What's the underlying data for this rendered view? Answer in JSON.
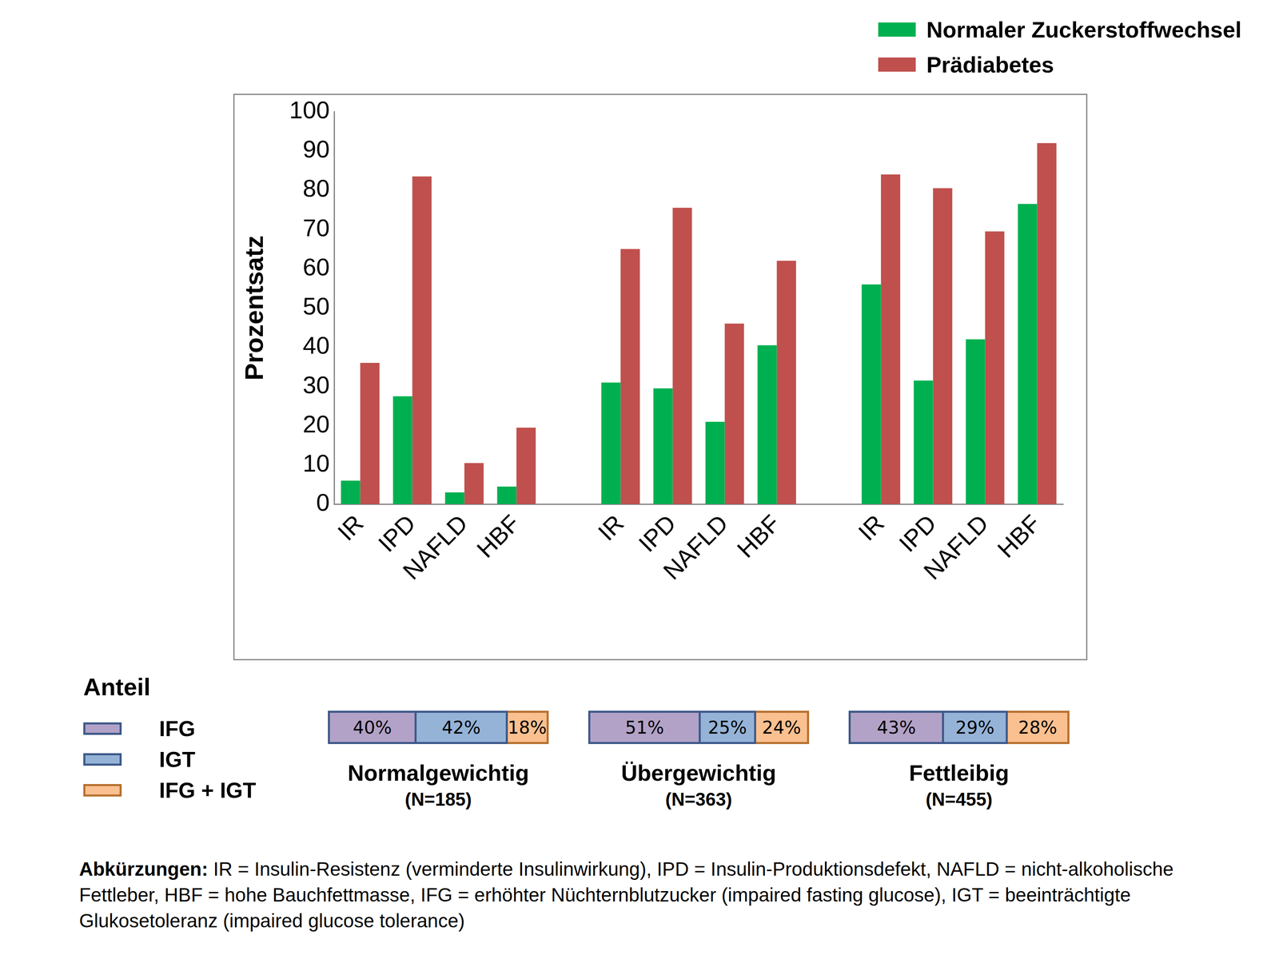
{
  "chart_data": {
    "type": "bar",
    "y_label": "Prozentsatz",
    "categories": [
      "IR",
      "IPD",
      "NAFLD",
      "HBF",
      null,
      "IR",
      "IPD",
      "NAFLD",
      "HBF",
      null,
      "IR",
      "IPD",
      "NAFLD",
      "HBF"
    ],
    "series": [
      {
        "name": "Normaler Zuckerstoffwechsel",
        "color": "#00b050",
        "values": [
          6,
          27.5,
          3,
          4.5,
          null,
          31,
          29.5,
          21,
          40.5,
          null,
          56,
          31.5,
          42,
          76.5
        ]
      },
      {
        "name": "Prädiabetes",
        "color": "#c0504d",
        "values": [
          36,
          83.5,
          10.5,
          19.5,
          null,
          65,
          75.5,
          46,
          62,
          null,
          84,
          80.5,
          69.5,
          92
        ]
      }
    ],
    "ylim": [
      0,
      100
    ],
    "yticks": [
      0,
      10,
      20,
      30,
      40,
      50,
      60,
      70,
      80,
      90,
      100
    ],
    "grid": false,
    "legend": "top right",
    "shares": {
      "title": "Anteil",
      "categories": [
        "IFG",
        "IGT",
        "IFG + IGT"
      ],
      "colors": [
        "#b3a2c7",
        "#95b3d7",
        "#fac090"
      ]
    },
    "groups": [
      {
        "name": "Normalgewichtig",
        "n_label": "(N=185)",
        "values": [
          40,
          42,
          18
        ],
        "value_labels": [
          "40%",
          "42%",
          "18%"
        ]
      },
      {
        "name": "Übergewichtig",
        "n_label": "(N=363)",
        "values": [
          51,
          25,
          24
        ],
        "value_labels": [
          "51%",
          "25%",
          "24%"
        ]
      },
      {
        "name": "Fettleibig",
        "n_label": "(N=455)",
        "values": [
          43,
          29,
          28
        ],
        "value_labels": [
          "43%",
          "29%",
          "28%"
        ]
      }
    ],
    "footnote_label": "Abkürzungen:",
    "footnote": "IR = Insulin-Resistenz (verminderte Insulinwirkung), IPD = Insulin-Produktionsdefekt, NAFLD = nicht-alkoholische Fettleber, HBF = hohe Bauchfettmasse, IFG = erhöhter Nüchternblutzucker (impaired fasting glucose), IGT = beeinträchtigte Glukosetoleranz (impaired glucose tolerance)"
  }
}
